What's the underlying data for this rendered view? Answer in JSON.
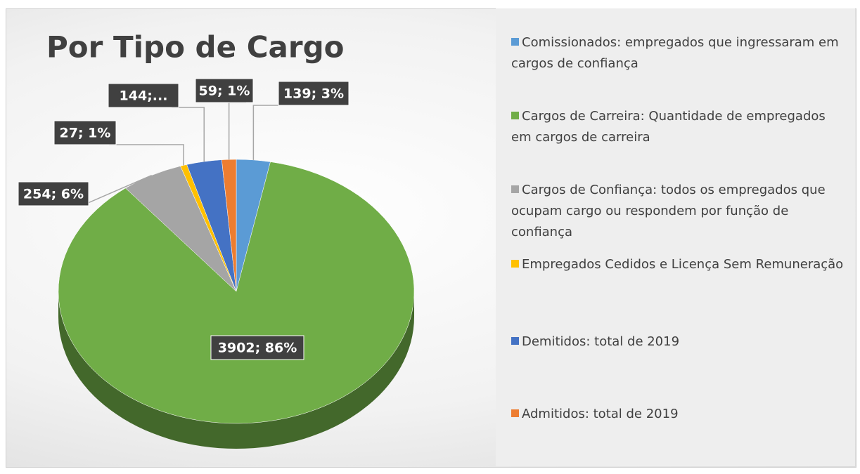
{
  "chart_data": {
    "type": "pie",
    "title": "Por Tipo de Cargo",
    "categories": [
      "Comissionados: empregados que ingressaram em cargos de confiança",
      "Cargos de Carreira: Quantidade de empregados em cargos de carreira",
      "Cargos de Confiança: todos os empregados que ocupam cargo ou respondem por função de confiança",
      "Empregados Cedidos e Licença Sem Remuneração",
      "Demitidos: total de 2019",
      "Admitidos: total de 2019"
    ],
    "values": [
      139,
      3902,
      254,
      27,
      144,
      59
    ],
    "value_labels": [
      "139; 3%",
      "3902; 86%",
      "254; 6%",
      "27; 1%",
      "144;...",
      "59; 1%"
    ],
    "colors": [
      "#5b9bd5",
      "#70ad47",
      "#a5a5a5",
      "#ffc000",
      "#4472c4",
      "#ed7d31"
    ]
  }
}
